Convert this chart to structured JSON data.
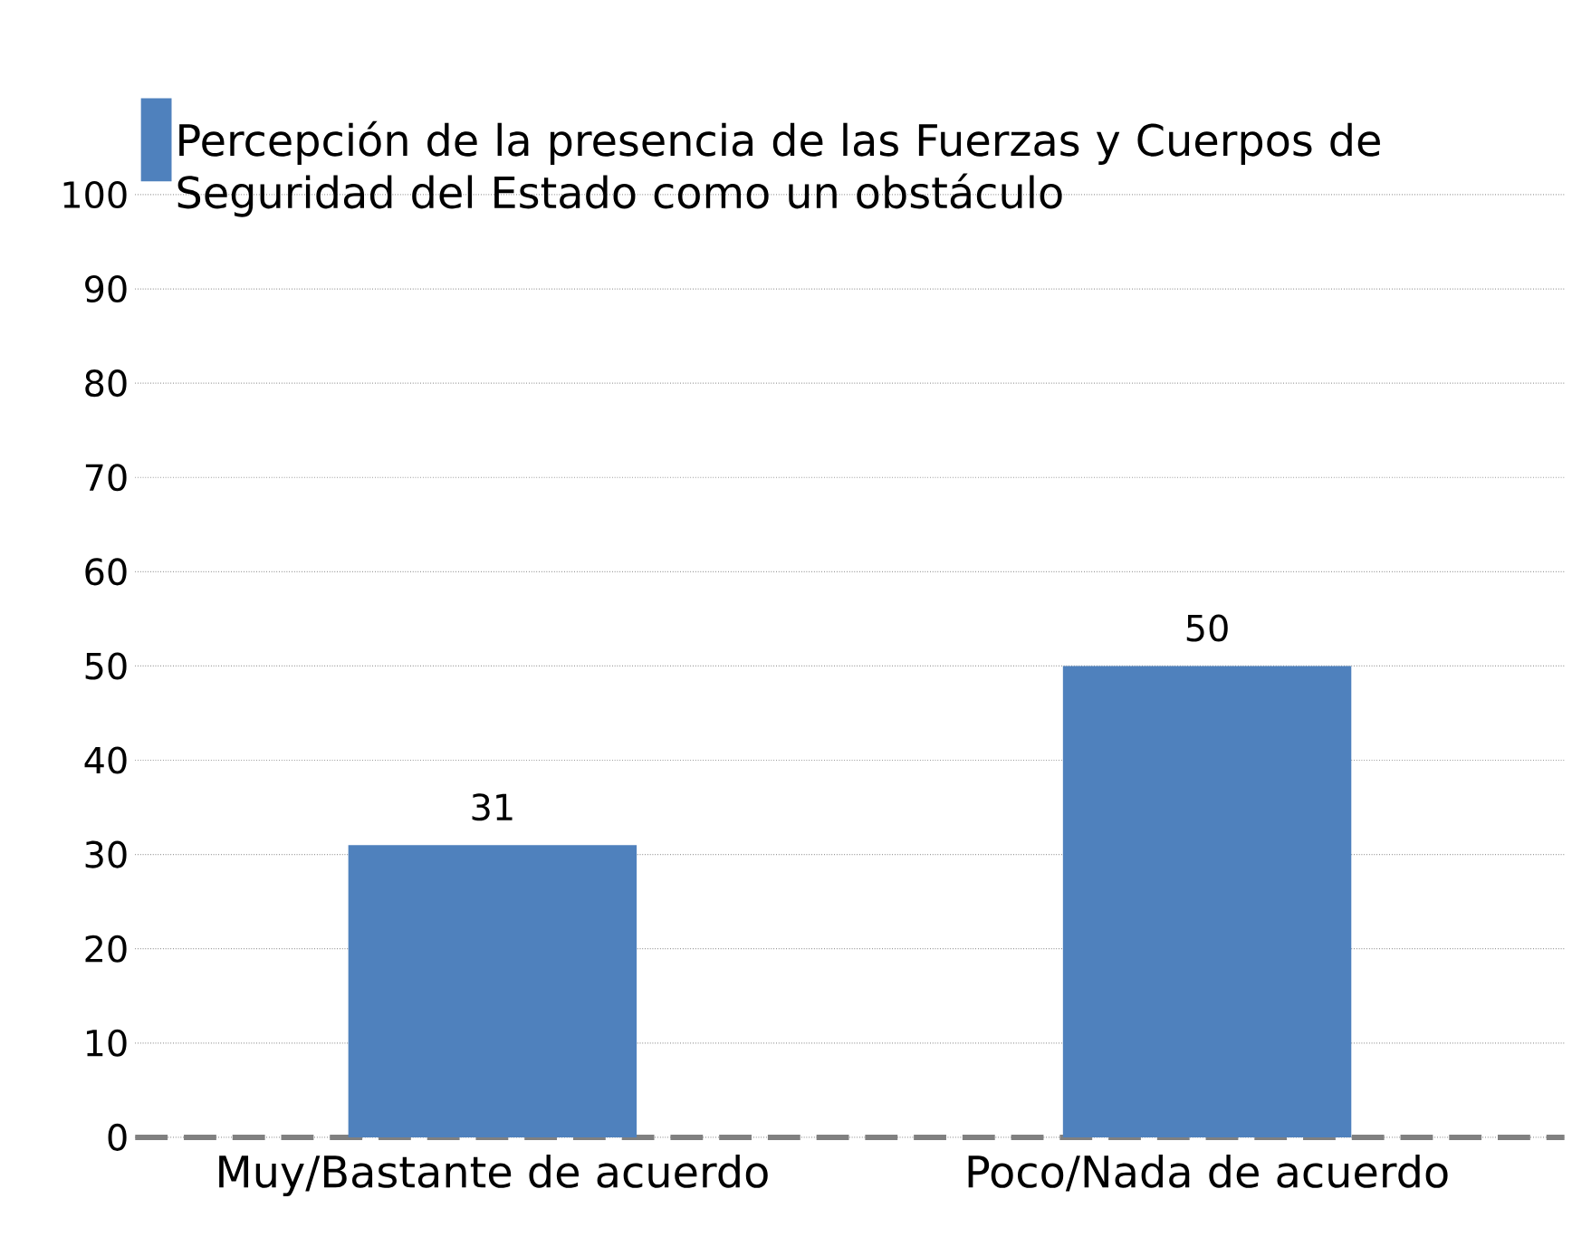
{
  "chart_data": {
    "type": "bar",
    "categories": [
      "Muy/Bastante de acuerdo",
      "Poco/Nada de acuerdo"
    ],
    "series": [
      {
        "name": "Percepción de la presencia de las Fuerzas y Cuerpos de Seguridad del Estado como un obstáculo",
        "color": "#4f81bd",
        "values": [
          31,
          50
        ]
      }
    ],
    "ylim": [
      0,
      100
    ],
    "yticks": [
      0,
      10,
      20,
      30,
      40,
      50,
      60,
      70,
      80,
      90,
      100
    ],
    "grid": "y",
    "legend": "top",
    "data_labels": true
  }
}
